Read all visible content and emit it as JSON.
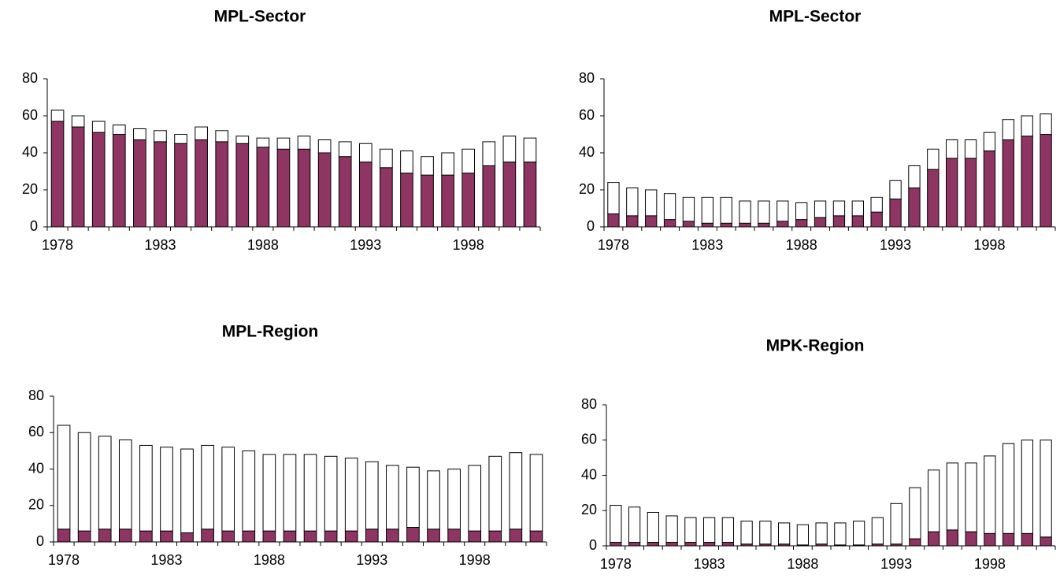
{
  "chart_data": [
    {
      "type": "bar",
      "stacked": true,
      "title": "MPL-Sector",
      "categories": [
        "1978",
        null,
        null,
        null,
        null,
        "1983",
        null,
        null,
        null,
        null,
        "1988",
        null,
        null,
        null,
        null,
        "1993",
        null,
        null,
        null,
        null,
        "1998",
        null,
        null,
        null
      ],
      "series": [
        {
          "color": "#8e3563",
          "values": [
            57,
            54,
            51,
            50,
            47,
            46,
            45,
            47,
            46,
            45,
            43,
            42,
            42,
            40,
            38,
            35,
            32,
            29,
            28,
            28,
            29,
            33,
            35,
            35
          ]
        },
        {
          "color": "#ffffff",
          "values": [
            6,
            6,
            6,
            5,
            6,
            6,
            5,
            7,
            6,
            4,
            5,
            6,
            7,
            7,
            8,
            10,
            10,
            12,
            10,
            12,
            13,
            13,
            14,
            13
          ]
        }
      ],
      "ylim": [
        0,
        80
      ],
      "yticks": [
        0,
        20,
        40,
        60,
        80
      ]
    },
    {
      "type": "bar",
      "stacked": true,
      "title": "MPL-Sector",
      "categories": [
        "1978",
        null,
        null,
        null,
        null,
        "1983",
        null,
        null,
        null,
        null,
        "1988",
        null,
        null,
        null,
        null,
        "1993",
        null,
        null,
        null,
        null,
        "1998",
        null,
        null,
        null
      ],
      "series": [
        {
          "color": "#8e3563",
          "values": [
            7,
            6,
            6,
            4,
            3,
            2,
            2,
            2,
            2,
            3,
            4,
            5,
            6,
            6,
            8,
            15,
            21,
            31,
            37,
            37,
            41,
            47,
            49,
            50
          ]
        },
        {
          "color": "#ffffff",
          "values": [
            17,
            15,
            14,
            14,
            13,
            14,
            14,
            12,
            12,
            11,
            9,
            9,
            8,
            8,
            8,
            10,
            12,
            11,
            10,
            10,
            10,
            11,
            11,
            11
          ]
        }
      ],
      "ylim": [
        0,
        80
      ],
      "yticks": [
        0,
        20,
        40,
        60,
        80
      ]
    },
    {
      "type": "bar",
      "stacked": true,
      "title": "MPL-Region",
      "categories": [
        "1978",
        null,
        null,
        null,
        null,
        "1983",
        null,
        null,
        null,
        null,
        "1988",
        null,
        null,
        null,
        null,
        "1993",
        null,
        null,
        null,
        null,
        "1998",
        null,
        null,
        null
      ],
      "series": [
        {
          "color": "#8e3563",
          "values": [
            7,
            6,
            7,
            7,
            6,
            6,
            5,
            7,
            6,
            6,
            6,
            6,
            6,
            6,
            6,
            7,
            7,
            8,
            7,
            7,
            6,
            6,
            7,
            6
          ]
        },
        {
          "color": "#ffffff",
          "values": [
            57,
            54,
            51,
            49,
            47,
            46,
            46,
            46,
            46,
            44,
            42,
            42,
            42,
            41,
            40,
            37,
            35,
            33,
            32,
            33,
            36,
            41,
            42,
            42
          ]
        }
      ],
      "ylim": [
        0,
        80
      ],
      "yticks": [
        0,
        20,
        40,
        60,
        80
      ]
    },
    {
      "type": "bar",
      "stacked": true,
      "title": "MPK-Region",
      "categories": [
        "1978",
        null,
        null,
        null,
        null,
        "1983",
        null,
        null,
        null,
        null,
        "1988",
        null,
        null,
        null,
        null,
        "1993",
        null,
        null,
        null,
        null,
        "1998",
        null,
        null,
        null
      ],
      "series": [
        {
          "color": "#8e3563",
          "values": [
            2,
            2,
            2,
            2,
            2,
            2,
            2,
            1,
            1,
            1,
            0.5,
            1,
            0.5,
            0.5,
            1,
            1,
            4,
            8,
            9,
            8,
            7,
            7,
            7,
            5
          ]
        },
        {
          "color": "#ffffff",
          "values": [
            21,
            20,
            17,
            15,
            14,
            14,
            14,
            13,
            13,
            12,
            11.5,
            12,
            12.5,
            13.5,
            15,
            23,
            29,
            35,
            38,
            39,
            44,
            51,
            53,
            55
          ]
        }
      ],
      "ylim": [
        0,
        80
      ],
      "yticks": [
        0,
        20,
        40,
        60,
        80
      ]
    }
  ]
}
